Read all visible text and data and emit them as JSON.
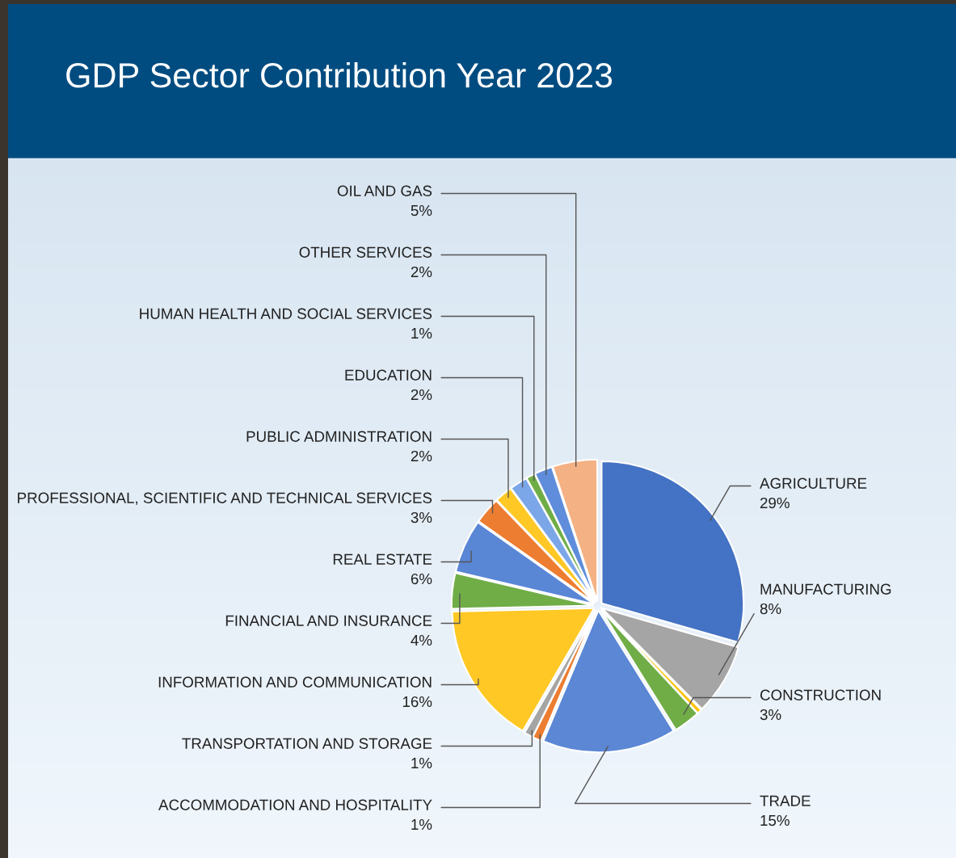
{
  "chart_data": {
    "type": "pie",
    "title": "GDP Sector Contribution Year 2023",
    "categories": [
      "AGRICULTURE",
      "MANUFACTURING",
      null,
      "CONSTRUCTION",
      "TRADE",
      "ACCOMMODATION AND HOSPITALITY",
      "TRANSPORTATION AND STORAGE",
      "INFORMATION AND COMMUNICATION",
      "FINANCIAL AND INSURANCE",
      "REAL ESTATE",
      "PROFESSIONAL, SCIENTIFIC AND TECHNICAL SERVICES",
      "PUBLIC ADMINISTRATION",
      "EDUCATION",
      "HUMAN HEALTH AND SOCIAL SERVICES",
      "OTHER SERVICES",
      "OIL AND GAS"
    ],
    "values": [
      29,
      8,
      0.5,
      3,
      15,
      1,
      1,
      16,
      4,
      6,
      3,
      2,
      2,
      1,
      2,
      5
    ],
    "colors": [
      "#4472c4",
      "#a5a5a5",
      "#ffc000",
      "#70ad47",
      "#5b87d5",
      "#ed7d31",
      "#a5a5a5",
      "#ffc825",
      "#70ad47",
      "#5a86d6",
      "#ed7d31",
      "#ffc825",
      "#7ba7e8",
      "#70ad47",
      "#5f8ddb",
      "#f4b183"
    ],
    "value_labels": [
      "29%",
      "8%",
      null,
      "3%",
      "15%",
      "1%",
      "1%",
      "16%",
      "4%",
      "6%",
      "3%",
      "2%",
      "2%",
      "1%",
      "2%",
      "5%"
    ]
  }
}
